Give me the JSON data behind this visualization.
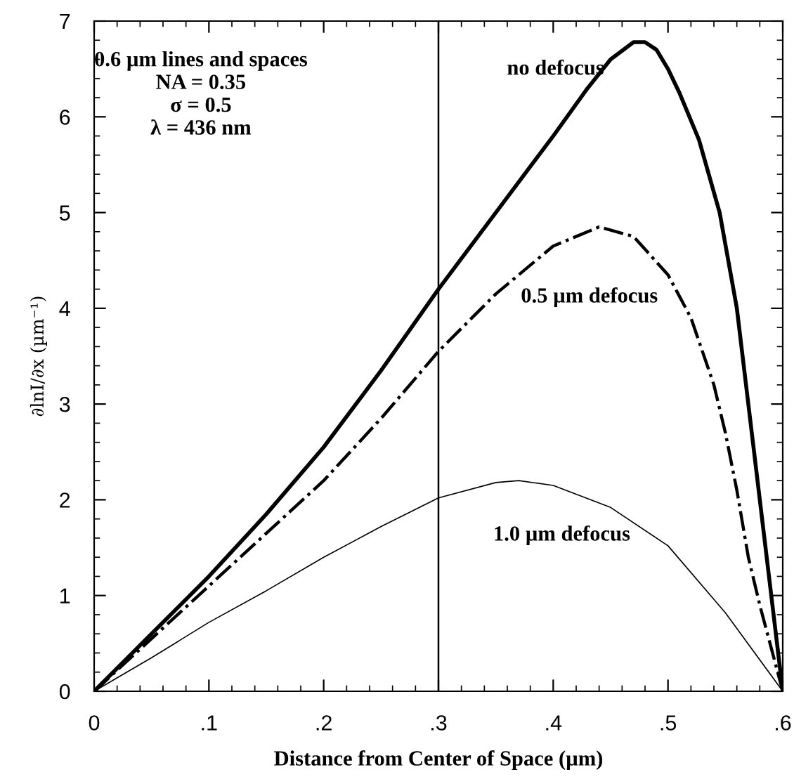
{
  "chart_data": {
    "type": "line",
    "xlabel": "Distance from Center of Space (µm)",
    "ylabel": "∂lnI/∂x (µm⁻¹)",
    "xlim": [
      0,
      0.6
    ],
    "ylim": [
      0,
      7
    ],
    "xticks": [
      0,
      {
        "value": 0.1,
        "label": ".1"
      },
      {
        "value": 0.2,
        "label": ".2"
      },
      {
        "value": 0.3,
        "label": ".3"
      },
      {
        "value": 0.4,
        "label": ".4"
      },
      {
        "value": 0.5,
        "label": ".5"
      },
      {
        "value": 0.6,
        "label": ".6"
      }
    ],
    "yticks": [
      0,
      1,
      2,
      3,
      4,
      5,
      6,
      7
    ],
    "grid": false,
    "legend": false,
    "marker": "none",
    "annotations": [
      "0.6 µm lines and spaces",
      "NA = 0.35",
      "σ = 0.5",
      "λ = 436 nm"
    ],
    "ref_lines": [
      {
        "axis": "x",
        "value": 0.3,
        "color": "#000000"
      }
    ],
    "series": [
      {
        "name": "no defocus",
        "color": "#000000",
        "line_style": "solid",
        "x": [
          0,
          0.05,
          0.1,
          0.15,
          0.2,
          0.25,
          0.3,
          0.35,
          0.4,
          0.43,
          0.45,
          0.47,
          0.48,
          0.49,
          0.5,
          0.51,
          0.527,
          0.545,
          0.56,
          0.569,
          0.58,
          0.59,
          0.6
        ],
        "values": [
          0,
          0.6,
          1.2,
          1.85,
          2.55,
          3.35,
          4.2,
          5.0,
          5.8,
          6.3,
          6.6,
          6.78,
          6.78,
          6.7,
          6.5,
          6.25,
          5.76,
          5.0,
          4.0,
          3.1,
          2.0,
          1.0,
          0
        ]
      },
      {
        "name": "0.5 µm defocus",
        "color": "#000000",
        "line_style": "dashdot",
        "x": [
          0,
          0.05,
          0.1,
          0.15,
          0.2,
          0.25,
          0.3,
          0.35,
          0.4,
          0.44,
          0.47,
          0.5,
          0.52,
          0.54,
          0.55,
          0.56,
          0.57,
          0.58,
          0.59,
          0.6
        ],
        "values": [
          0,
          0.55,
          1.1,
          1.65,
          2.2,
          2.85,
          3.55,
          4.15,
          4.65,
          4.85,
          4.75,
          4.35,
          3.9,
          3.2,
          2.7,
          2.1,
          1.4,
          0.9,
          0.45,
          0
        ]
      },
      {
        "name": "1.0 µm defocus",
        "color": "#000000",
        "line_style": "solid",
        "x": [
          0,
          0.05,
          0.1,
          0.15,
          0.2,
          0.25,
          0.3,
          0.35,
          0.37,
          0.4,
          0.45,
          0.5,
          0.55,
          0.6
        ],
        "values": [
          0,
          0.35,
          0.72,
          1.05,
          1.4,
          1.72,
          2.02,
          2.18,
          2.2,
          2.15,
          1.92,
          1.52,
          0.82,
          0
        ]
      }
    ]
  }
}
